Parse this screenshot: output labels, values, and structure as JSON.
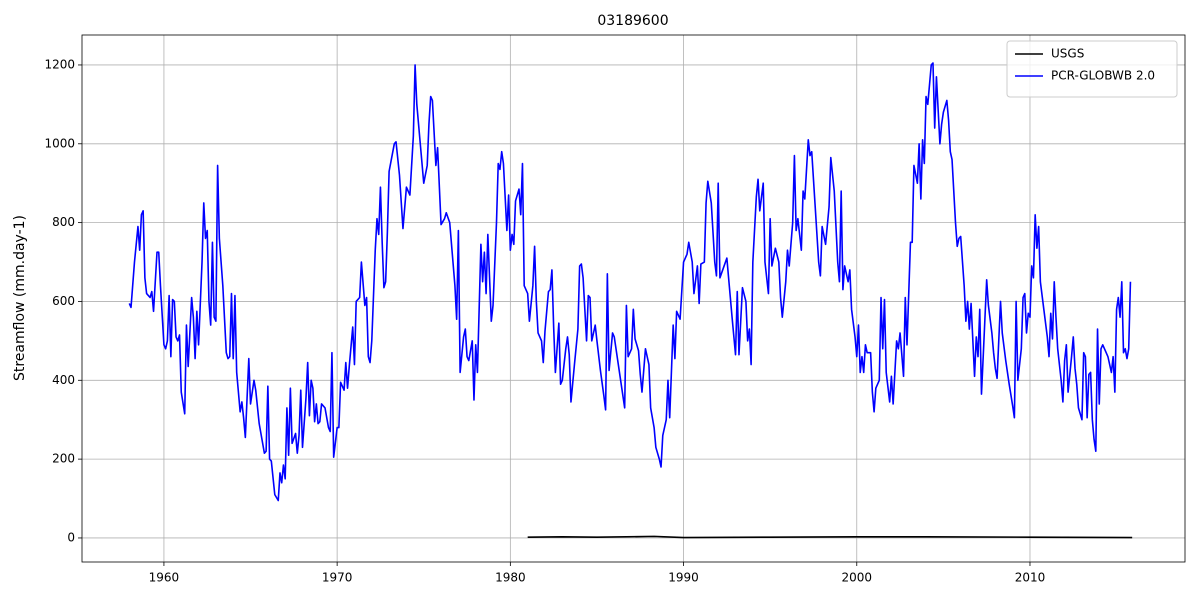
{
  "chart_data": {
    "type": "line",
    "title": "03189600",
    "y_label": "Streamflow (mm.day-1)",
    "xlim": [
      1955.27,
      2018.95
    ],
    "ylim": [
      -61,
      1276
    ],
    "xticks": [
      1960,
      1970,
      1980,
      1990,
      2000,
      2010
    ],
    "yticks": [
      0,
      200,
      400,
      600,
      800,
      1000,
      1200
    ],
    "grid": true,
    "legend": "upper right",
    "series": [
      {
        "name": "USGS",
        "color": "#000000",
        "x": [
          1981.0,
          1983.0,
          1985.0,
          1988.3,
          1990.0,
          1995.0,
          2000.0,
          2004.0,
          2010.0,
          2015.9
        ],
        "values": [
          2,
          3,
          2,
          4,
          1,
          2,
          3,
          3,
          2,
          1
        ]
      },
      {
        "name": "PCR-GLOBWB 2.0",
        "color": "#0000ff",
        "x": [
          1958.0,
          1958.1,
          1958.3,
          1958.5,
          1958.6,
          1958.7,
          1958.8,
          1958.9,
          1959.0,
          1959.2,
          1959.3,
          1959.4,
          1959.5,
          1959.6,
          1959.7,
          1959.8,
          1960.0,
          1960.1,
          1960.2,
          1960.3,
          1960.4,
          1960.5,
          1960.6,
          1960.7,
          1960.8,
          1960.9,
          1961.0,
          1961.2,
          1961.3,
          1961.4,
          1961.6,
          1961.7,
          1961.8,
          1961.9,
          1962.0,
          1962.2,
          1962.3,
          1962.4,
          1962.5,
          1962.6,
          1962.7,
          1962.8,
          1962.9,
          1963.0,
          1963.1,
          1963.2,
          1963.4,
          1963.6,
          1963.7,
          1963.8,
          1963.9,
          1964.0,
          1964.1,
          1964.2,
          1964.4,
          1964.5,
          1964.6,
          1964.7,
          1964.8,
          1964.9,
          1965.0,
          1965.2,
          1965.3,
          1965.5,
          1965.7,
          1965.8,
          1965.9,
          1966.0,
          1966.1,
          1966.2,
          1966.4,
          1966.6,
          1966.7,
          1966.8,
          1966.9,
          1967.0,
          1967.1,
          1967.2,
          1967.3,
          1967.4,
          1967.6,
          1967.7,
          1967.8,
          1967.9,
          1968.0,
          1968.2,
          1968.3,
          1968.4,
          1968.5,
          1968.6,
          1968.7,
          1968.8,
          1968.9,
          1969.0,
          1969.1,
          1969.3,
          1969.5,
          1969.6,
          1969.7,
          1969.8,
          1970.0,
          1970.1,
          1970.2,
          1970.4,
          1970.5,
          1970.6,
          1970.7,
          1970.9,
          1971.0,
          1971.1,
          1971.3,
          1971.4,
          1971.6,
          1971.7,
          1971.8,
          1971.9,
          1972.0,
          1972.2,
          1972.3,
          1972.4,
          1972.5,
          1972.6,
          1972.7,
          1972.8,
          1972.9,
          1973.0,
          1973.3,
          1973.4,
          1973.6,
          1973.8,
          1974.0,
          1974.2,
          1974.4,
          1974.5,
          1974.6,
          1974.8,
          1975.0,
          1975.2,
          1975.3,
          1975.4,
          1975.5,
          1975.7,
          1975.8,
          1976.0,
          1976.2,
          1976.3,
          1976.5,
          1976.8,
          1976.9,
          1977.0,
          1977.1,
          1977.3,
          1977.4,
          1977.5,
          1977.6,
          1977.8,
          1977.9,
          1978.0,
          1978.1,
          1978.3,
          1978.4,
          1978.5,
          1978.6,
          1978.7,
          1978.9,
          1979.0,
          1979.2,
          1979.3,
          1979.4,
          1979.5,
          1979.6,
          1979.8,
          1979.9,
          1980.0,
          1980.1,
          1980.2,
          1980.3,
          1980.5,
          1980.6,
          1980.7,
          1980.8,
          1981.0,
          1981.1,
          1981.3,
          1981.4,
          1981.5,
          1981.6,
          1981.8,
          1981.9,
          1982.0,
          1982.2,
          1982.3,
          1982.4,
          1982.5,
          1982.6,
          1982.8,
          1982.9,
          1983.0,
          1983.2,
          1983.3,
          1983.4,
          1983.5,
          1983.7,
          1983.9,
          1984.0,
          1984.1,
          1984.2,
          1984.4,
          1984.5,
          1984.6,
          1984.7,
          1984.9,
          1985.0,
          1985.2,
          1985.4,
          1985.5,
          1985.6,
          1985.7,
          1985.9,
          1986.0,
          1986.2,
          1986.4,
          1986.6,
          1986.7,
          1986.8,
          1987.0,
          1987.1,
          1987.2,
          1987.4,
          1987.5,
          1987.6,
          1987.8,
          1988.0,
          1988.1,
          1988.3,
          1988.4,
          1988.6,
          1988.7,
          1988.8,
          1989.0,
          1989.1,
          1989.2,
          1989.4,
          1989.5,
          1989.6,
          1989.8,
          1990.0,
          1990.2,
          1990.3,
          1990.5,
          1990.6,
          1990.8,
          1990.9,
          1991.0,
          1991.2,
          1991.3,
          1991.4,
          1991.6,
          1991.8,
          1991.9,
          1992.0,
          1992.1,
          1992.3,
          1992.5,
          1992.6,
          1992.8,
          1993.0,
          1993.1,
          1993.2,
          1993.4,
          1993.6,
          1993.7,
          1993.8,
          1993.9,
          1994.0,
          1994.2,
          1994.3,
          1994.4,
          1994.6,
          1994.7,
          1994.9,
          1995.0,
          1995.1,
          1995.3,
          1995.5,
          1995.6,
          1995.7,
          1995.9,
          1996.0,
          1996.1,
          1996.3,
          1996.4,
          1996.5,
          1996.6,
          1996.8,
          1996.9,
          1997.0,
          1997.2,
          1997.3,
          1997.4,
          1997.6,
          1997.8,
          1997.9,
          1998.0,
          1998.2,
          1998.4,
          1998.5,
          1998.7,
          1998.9,
          1999.0,
          1999.1,
          1999.2,
          1999.3,
          1999.5,
          1999.6,
          1999.7,
          1999.9,
          2000.0,
          2000.1,
          2000.2,
          2000.3,
          2000.4,
          2000.5,
          2000.6,
          2000.8,
          2000.9,
          2001.0,
          2001.1,
          2001.3,
          2001.4,
          2001.5,
          2001.6,
          2001.7,
          2001.9,
          2002.0,
          2002.1,
          2002.3,
          2002.4,
          2002.5,
          2002.7,
          2002.8,
          2002.9,
          2003.1,
          2003.2,
          2003.3,
          2003.5,
          2003.6,
          2003.7,
          2003.8,
          2003.9,
          2004.0,
          2004.1,
          2004.3,
          2004.4,
          2004.5,
          2004.6,
          2004.8,
          2004.9,
          2005.0,
          2005.2,
          2005.3,
          2005.4,
          2005.5,
          2005.7,
          2005.8,
          2005.9,
          2006.0,
          2006.2,
          2006.3,
          2006.4,
          2006.5,
          2006.6,
          2006.8,
          2006.9,
          2007.0,
          2007.1,
          2007.2,
          2007.3,
          2007.5,
          2007.6,
          2007.8,
          2007.9,
          2008.0,
          2008.1,
          2008.3,
          2008.4,
          2008.6,
          2008.8,
          2009.0,
          2009.1,
          2009.2,
          2009.3,
          2009.5,
          2009.6,
          2009.7,
          2009.8,
          2009.9,
          2010.0,
          2010.1,
          2010.2,
          2010.3,
          2010.4,
          2010.5,
          2010.6,
          2010.8,
          2011.0,
          2011.1,
          2011.2,
          2011.3,
          2011.4,
          2011.5,
          2011.6,
          2011.8,
          2011.9,
          2012.0,
          2012.1,
          2012.2,
          2012.4,
          2012.5,
          2012.6,
          2012.7,
          2012.8,
          2013.0,
          2013.1,
          2013.2,
          2013.3,
          2013.4,
          2013.5,
          2013.6,
          2013.7,
          2013.8,
          2013.9,
          2014.0,
          2014.1,
          2014.2,
          2014.4,
          2014.5,
          2014.7,
          2014.8,
          2014.9,
          2015.0,
          2015.1,
          2015.2,
          2015.3,
          2015.4,
          2015.5,
          2015.6,
          2015.7,
          2015.8
        ],
        "values": [
          595,
          585,
          700,
          790,
          730,
          820,
          830,
          660,
          620,
          610,
          625,
          575,
          650,
          725,
          725,
          640,
          490,
          480,
          500,
          615,
          460,
          605,
          600,
          510,
          500,
          515,
          370,
          315,
          540,
          435,
          610,
          560,
          455,
          575,
          490,
          700,
          850,
          760,
          780,
          600,
          540,
          750,
          560,
          550,
          945,
          760,
          640,
          470,
          455,
          460,
          620,
          455,
          615,
          420,
          320,
          345,
          305,
          255,
          355,
          455,
          340,
          400,
          375,
          290,
          240,
          215,
          220,
          385,
          200,
          195,
          110,
          95,
          165,
          140,
          185,
          150,
          330,
          210,
          380,
          240,
          265,
          215,
          260,
          375,
          230,
          355,
          445,
          310,
          400,
          380,
          295,
          340,
          290,
          295,
          340,
          330,
          280,
          270,
          470,
          205,
          280,
          280,
          395,
          375,
          445,
          380,
          435,
          535,
          440,
          600,
          610,
          700,
          590,
          610,
          460,
          445,
          500,
          730,
          810,
          770,
          890,
          750,
          635,
          650,
          775,
          930,
          1000,
          1005,
          920,
          785,
          890,
          870,
          1020,
          1200,
          1100,
          1000,
          900,
          945,
          1050,
          1120,
          1110,
          945,
          990,
          795,
          810,
          825,
          800,
          640,
          555,
          780,
          420,
          510,
          530,
          460,
          450,
          500,
          350,
          490,
          420,
          745,
          650,
          725,
          620,
          770,
          550,
          590,
          800,
          950,
          935,
          980,
          950,
          780,
          870,
          730,
          770,
          745,
          855,
          885,
          820,
          950,
          640,
          620,
          550,
          640,
          740,
          600,
          520,
          500,
          445,
          525,
          625,
          630,
          680,
          535,
          420,
          545,
          390,
          400,
          480,
          510,
          465,
          345,
          440,
          530,
          690,
          695,
          660,
          500,
          615,
          610,
          500,
          540,
          500,
          425,
          360,
          325,
          670,
          425,
          520,
          510,
          450,
          390,
          330,
          590,
          460,
          480,
          580,
          505,
          475,
          415,
          370,
          480,
          440,
          330,
          280,
          230,
          200,
          180,
          260,
          300,
          400,
          305,
          540,
          455,
          575,
          555,
          700,
          720,
          750,
          700,
          620,
          690,
          595,
          695,
          700,
          850,
          905,
          850,
          700,
          665,
          900,
          660,
          685,
          710,
          660,
          560,
          465,
          625,
          465,
          635,
          600,
          500,
          530,
          440,
          700,
          865,
          910,
          830,
          900,
          700,
          620,
          810,
          690,
          735,
          700,
          610,
          560,
          650,
          730,
          690,
          800,
          970,
          780,
          810,
          730,
          880,
          860,
          1010,
          970,
          980,
          840,
          700,
          665,
          790,
          745,
          840,
          965,
          880,
          700,
          650,
          880,
          630,
          690,
          650,
          680,
          580,
          510,
          460,
          540,
          420,
          460,
          420,
          490,
          470,
          470,
          370,
          320,
          380,
          400,
          610,
          480,
          605,
          420,
          345,
          410,
          340,
          500,
          480,
          520,
          410,
          610,
          490,
          750,
          750,
          945,
          900,
          1000,
          860,
          1010,
          950,
          1120,
          1100,
          1200,
          1205,
          1040,
          1170,
          1000,
          1050,
          1080,
          1110,
          1060,
          980,
          960,
          800,
          740,
          760,
          765,
          640,
          550,
          600,
          530,
          595,
          410,
          510,
          460,
          580,
          365,
          460,
          655,
          590,
          520,
          470,
          430,
          405,
          600,
          520,
          450,
          390,
          335,
          305,
          600,
          400,
          480,
          610,
          620,
          520,
          570,
          560,
          690,
          660,
          820,
          735,
          790,
          650,
          580,
          510,
          460,
          570,
          505,
          650,
          560,
          480,
          400,
          345,
          450,
          490,
          370,
          460,
          510,
          430,
          390,
          330,
          300,
          470,
          460,
          305,
          415,
          420,
          300,
          250,
          220,
          530,
          340,
          480,
          490,
          470,
          460,
          420,
          460,
          370,
          580,
          610,
          560,
          650,
          470,
          480,
          455,
          480,
          650
        ]
      }
    ]
  }
}
